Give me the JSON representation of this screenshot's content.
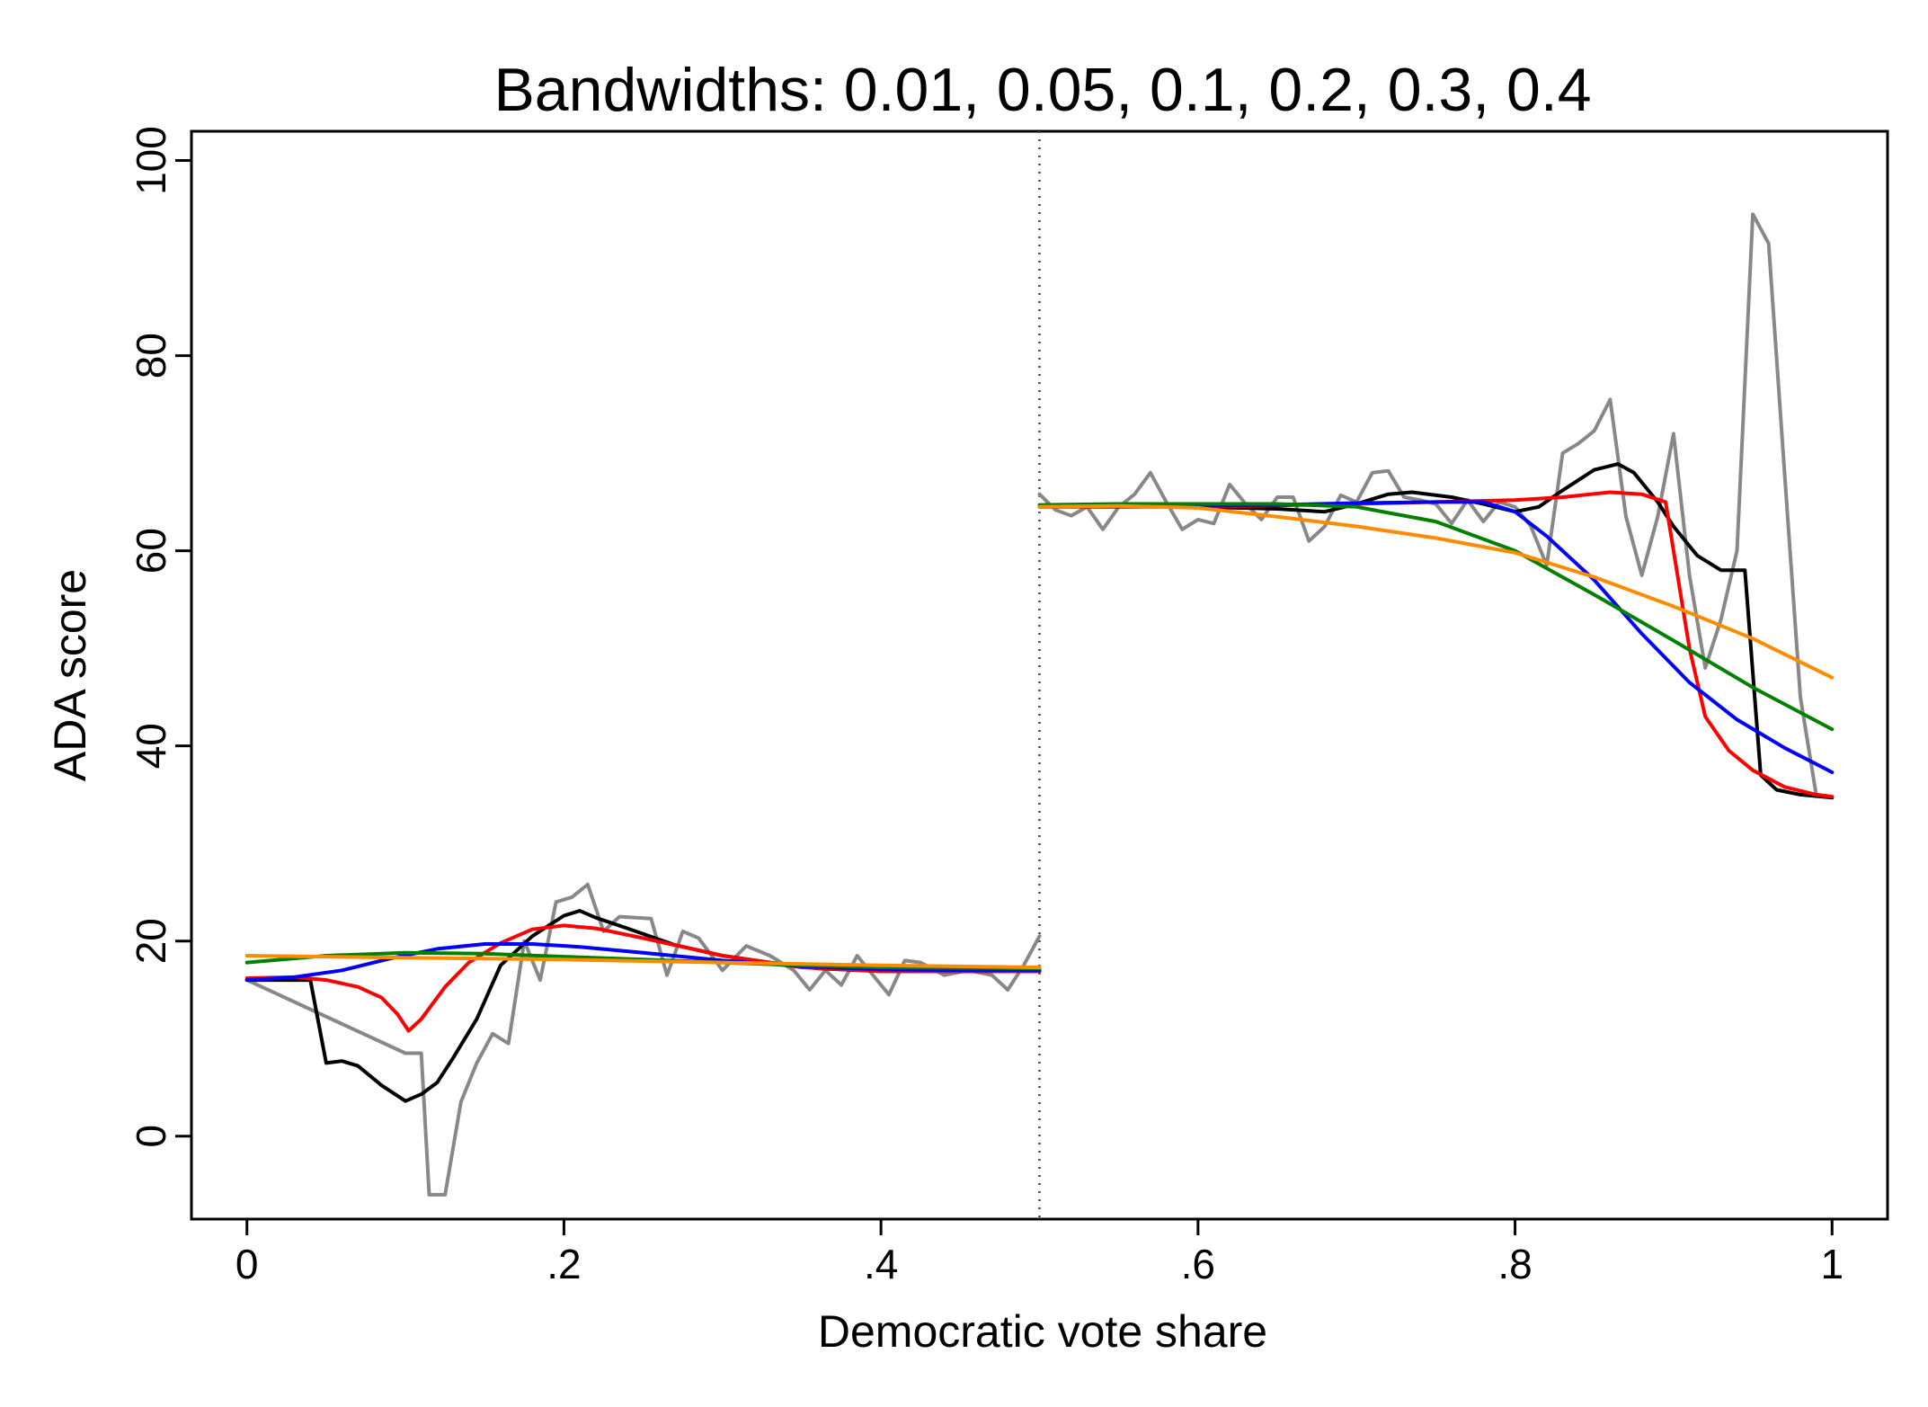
{
  "chart_data": {
    "type": "line",
    "title": "Bandwidths: 0.01, 0.05, 0.1, 0.2, 0.3, 0.4",
    "xlabel": "Democratic vote share",
    "ylabel": "ADA score",
    "xlim": [
      -0.035,
      1.035
    ],
    "ylim": [
      -8.5,
      103
    ],
    "x_ticks": [
      0,
      0.2,
      0.4,
      0.6,
      0.8,
      1
    ],
    "x_tick_labels": [
      "0",
      ".2",
      ".4",
      ".6",
      ".8",
      "1"
    ],
    "y_ticks": [
      0,
      20,
      40,
      60,
      80,
      100
    ],
    "y_tick_labels": [
      "0",
      "20",
      "40",
      "60",
      "80",
      "100"
    ],
    "cutoff": 0.5,
    "grid": false,
    "legend": "none",
    "series": [
      {
        "color": "#888888",
        "segments": [
          [
            [
              0,
              16
            ],
            [
              0.1,
              8.5
            ],
            [
              0.11,
              8.5
            ],
            [
              0.115,
              -6
            ],
            [
              0.125,
              -6
            ],
            [
              0.135,
              3.5
            ],
            [
              0.145,
              7.5
            ],
            [
              0.155,
              10.5
            ],
            [
              0.165,
              9.5
            ],
            [
              0.175,
              20
            ],
            [
              0.185,
              16
            ],
            [
              0.195,
              24
            ],
            [
              0.205,
              24.5
            ],
            [
              0.215,
              25.8
            ],
            [
              0.225,
              21
            ],
            [
              0.235,
              22.5
            ],
            [
              0.255,
              22.3
            ],
            [
              0.265,
              16.5
            ],
            [
              0.275,
              21
            ],
            [
              0.285,
              20.3
            ],
            [
              0.3,
              17
            ],
            [
              0.315,
              19.5
            ],
            [
              0.33,
              18.5
            ],
            [
              0.345,
              17
            ],
            [
              0.355,
              15
            ],
            [
              0.365,
              17
            ],
            [
              0.375,
              15.5
            ],
            [
              0.385,
              18.5
            ],
            [
              0.395,
              16.5
            ],
            [
              0.405,
              14.5
            ],
            [
              0.415,
              18
            ],
            [
              0.425,
              17.8
            ],
            [
              0.44,
              16.5
            ],
            [
              0.455,
              17
            ],
            [
              0.47,
              16.5
            ],
            [
              0.48,
              15
            ],
            [
              0.49,
              17.5
            ],
            [
              0.5,
              20.5
            ]
          ],
          [
            [
              0.5,
              65.8
            ],
            [
              0.51,
              64.2
            ],
            [
              0.52,
              63.6
            ],
            [
              0.53,
              64.5
            ],
            [
              0.54,
              62.2
            ],
            [
              0.55,
              64.5
            ],
            [
              0.56,
              65.8
            ],
            [
              0.57,
              68
            ],
            [
              0.58,
              65
            ],
            [
              0.59,
              62.2
            ],
            [
              0.6,
              63.2
            ],
            [
              0.61,
              62.8
            ],
            [
              0.62,
              66.8
            ],
            [
              0.63,
              64.8
            ],
            [
              0.64,
              63.2
            ],
            [
              0.65,
              65.5
            ],
            [
              0.66,
              65.5
            ],
            [
              0.67,
              61
            ],
            [
              0.68,
              62.5
            ],
            [
              0.69,
              65.7
            ],
            [
              0.7,
              65
            ],
            [
              0.71,
              68
            ],
            [
              0.72,
              68.2
            ],
            [
              0.73,
              65.5
            ],
            [
              0.74,
              65.2
            ],
            [
              0.75,
              64.8
            ],
            [
              0.76,
              62.8
            ],
            [
              0.77,
              65.2
            ],
            [
              0.78,
              63
            ],
            [
              0.79,
              65
            ],
            [
              0.8,
              64.5
            ],
            [
              0.81,
              62.5
            ],
            [
              0.82,
              58.5
            ],
            [
              0.83,
              70
            ],
            [
              0.84,
              71
            ],
            [
              0.85,
              72.3
            ],
            [
              0.86,
              75.5
            ],
            [
              0.87,
              63.5
            ],
            [
              0.88,
              57.5
            ],
            [
              0.89,
              63.5
            ],
            [
              0.9,
              72
            ],
            [
              0.91,
              57.5
            ],
            [
              0.92,
              48
            ],
            [
              0.93,
              53
            ],
            [
              0.94,
              60
            ],
            [
              0.95,
              94.5
            ],
            [
              0.96,
              91.5
            ],
            [
              0.97,
              68
            ],
            [
              0.98,
              45
            ],
            [
              0.99,
              35
            ]
          ]
        ]
      },
      {
        "color": "#000000",
        "segments": [
          [
            [
              0,
              16
            ],
            [
              0.04,
              16
            ],
            [
              0.05,
              7.5
            ],
            [
              0.06,
              7.7
            ],
            [
              0.07,
              7.2
            ],
            [
              0.085,
              5.2
            ],
            [
              0.1,
              3.6
            ],
            [
              0.11,
              4.3
            ],
            [
              0.12,
              5.5
            ],
            [
              0.13,
              8
            ],
            [
              0.145,
              12
            ],
            [
              0.16,
              17.5
            ],
            [
              0.18,
              20.5
            ],
            [
              0.2,
              22.6
            ],
            [
              0.21,
              23.1
            ],
            [
              0.22,
              22.4
            ],
            [
              0.24,
              21.3
            ],
            [
              0.27,
              19.6
            ],
            [
              0.3,
              18.5
            ],
            [
              0.33,
              17.8
            ],
            [
              0.36,
              17.2
            ],
            [
              0.4,
              16.9
            ],
            [
              0.45,
              16.9
            ],
            [
              0.5,
              16.9
            ]
          ],
          [
            [
              0.5,
              64.5
            ],
            [
              0.55,
              64.8
            ],
            [
              0.6,
              64.5
            ],
            [
              0.65,
              64.3
            ],
            [
              0.68,
              64.0
            ],
            [
              0.7,
              64.8
            ],
            [
              0.72,
              65.8
            ],
            [
              0.735,
              66.0
            ],
            [
              0.76,
              65.5
            ],
            [
              0.78,
              64.8
            ],
            [
              0.8,
              64.0
            ],
            [
              0.815,
              64.5
            ],
            [
              0.83,
              66.2
            ],
            [
              0.85,
              68.3
            ],
            [
              0.865,
              68.9
            ],
            [
              0.875,
              68.0
            ],
            [
              0.89,
              65
            ],
            [
              0.9,
              62.5
            ],
            [
              0.915,
              59.5
            ],
            [
              0.93,
              58
            ],
            [
              0.945,
              58
            ],
            [
              0.955,
              37
            ],
            [
              0.965,
              35.5
            ],
            [
              0.98,
              35
            ],
            [
              1,
              34.7
            ]
          ]
        ]
      },
      {
        "color": "#ff0000",
        "segments": [
          [
            [
              0,
              16.2
            ],
            [
              0.03,
              16.3
            ],
            [
              0.05,
              16
            ],
            [
              0.07,
              15.3
            ],
            [
              0.085,
              14.2
            ],
            [
              0.095,
              12.5
            ],
            [
              0.102,
              10.8
            ],
            [
              0.11,
              12
            ],
            [
              0.125,
              15.3
            ],
            [
              0.14,
              17.8
            ],
            [
              0.16,
              19.8
            ],
            [
              0.18,
              21.2
            ],
            [
              0.2,
              21.6
            ],
            [
              0.22,
              21.3
            ],
            [
              0.25,
              20.3
            ],
            [
              0.3,
              18.5
            ],
            [
              0.35,
              17.3
            ],
            [
              0.4,
              16.9
            ],
            [
              0.5,
              16.9
            ]
          ],
          [
            [
              0.5,
              64.5
            ],
            [
              0.6,
              64.5
            ],
            [
              0.7,
              64.8
            ],
            [
              0.75,
              65
            ],
            [
              0.8,
              65.2
            ],
            [
              0.83,
              65.5
            ],
            [
              0.86,
              66
            ],
            [
              0.88,
              65.8
            ],
            [
              0.895,
              65
            ],
            [
              0.9,
              60
            ],
            [
              0.91,
              50
            ],
            [
              0.92,
              43
            ],
            [
              0.935,
              39.5
            ],
            [
              0.95,
              37.5
            ],
            [
              0.97,
              35.8
            ],
            [
              0.99,
              35
            ],
            [
              1,
              34.8
            ]
          ]
        ]
      },
      {
        "color": "#0000ff",
        "segments": [
          [
            [
              0,
              16
            ],
            [
              0.03,
              16.3
            ],
            [
              0.06,
              17
            ],
            [
              0.09,
              18.2
            ],
            [
              0.12,
              19.2
            ],
            [
              0.15,
              19.7
            ],
            [
              0.18,
              19.7
            ],
            [
              0.21,
              19.4
            ],
            [
              0.25,
              18.8
            ],
            [
              0.3,
              18.0
            ],
            [
              0.35,
              17.4
            ],
            [
              0.4,
              17.1
            ],
            [
              0.45,
              17.0
            ],
            [
              0.5,
              17.0
            ]
          ],
          [
            [
              0.5,
              64.5
            ],
            [
              0.6,
              64.6
            ],
            [
              0.65,
              64.7
            ],
            [
              0.7,
              64.9
            ],
            [
              0.75,
              65
            ],
            [
              0.78,
              65
            ],
            [
              0.8,
              64
            ],
            [
              0.82,
              61.5
            ],
            [
              0.85,
              57
            ],
            [
              0.88,
              51.5
            ],
            [
              0.91,
              46.5
            ],
            [
              0.94,
              42.7
            ],
            [
              0.97,
              39.8
            ],
            [
              1,
              37.3
            ]
          ]
        ]
      },
      {
        "color": "#008000",
        "segments": [
          [
            [
              0,
              17.8
            ],
            [
              0.05,
              18.5
            ],
            [
              0.1,
              18.8
            ],
            [
              0.15,
              18.7
            ],
            [
              0.2,
              18.4
            ],
            [
              0.25,
              18.1
            ],
            [
              0.3,
              17.8
            ],
            [
              0.35,
              17.5
            ],
            [
              0.4,
              17.3
            ],
            [
              0.5,
              17.2
            ]
          ],
          [
            [
              0.5,
              64.7
            ],
            [
              0.55,
              64.8
            ],
            [
              0.6,
              64.8
            ],
            [
              0.65,
              64.8
            ],
            [
              0.7,
              64.5
            ],
            [
              0.75,
              63
            ],
            [
              0.8,
              60
            ],
            [
              0.85,
              55.5
            ],
            [
              0.9,
              50.8
            ],
            [
              0.95,
              46
            ],
            [
              1,
              41.7
            ]
          ]
        ]
      },
      {
        "color": "#ff8c00",
        "segments": [
          [
            [
              0,
              18.5
            ],
            [
              0.1,
              18.3
            ],
            [
              0.2,
              18.1
            ],
            [
              0.3,
              17.8
            ],
            [
              0.4,
              17.5
            ],
            [
              0.5,
              17.3
            ]
          ],
          [
            [
              0.5,
              64.5
            ],
            [
              0.55,
              64.6
            ],
            [
              0.6,
              64.4
            ],
            [
              0.65,
              63.5
            ],
            [
              0.7,
              62.5
            ],
            [
              0.75,
              61.3
            ],
            [
              0.8,
              59.8
            ],
            [
              0.85,
              57.3
            ],
            [
              0.9,
              54.3
            ],
            [
              0.95,
              51
            ],
            [
              1,
              47
            ]
          ]
        ]
      }
    ]
  }
}
